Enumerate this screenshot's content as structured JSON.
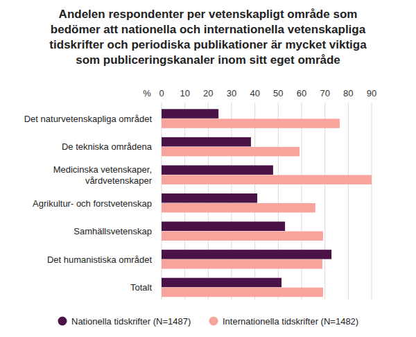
{
  "chart_data": {
    "type": "bar",
    "orientation": "horizontal",
    "title": "Andelen respondenter per vetenskapligt område som\nbedömer att nationella och internationella vetenskapliga\ntidskrifter och periodiska publikationer är mycket viktiga\nsom publiceringskanaler inom sitt eget område",
    "x_label": "%",
    "categories": [
      "Det naturvetenskapliga området",
      "De tekniska områdena",
      "Medicinska vetenskaper,\nvårdvetenskaper",
      "Agrikultur- och forstvetenskap",
      "Samhällsvetenskap",
      "Det humanistiska området",
      "Totalt"
    ],
    "series": [
      {
        "name": "Nationella tidskrifter (N=1487)",
        "color": "#4b1248",
        "values": [
          24.4,
          38.3,
          47.8,
          41,
          52.9,
          72.8,
          51.4
        ]
      },
      {
        "name": "Internationella tidskrifter (N=1482)",
        "color": "#f8a39c",
        "values": [
          76.3,
          59.1,
          90,
          65.9,
          69.2,
          68.9,
          69.2
        ]
      }
    ],
    "xlim": [
      0,
      90
    ],
    "xticks": [
      0,
      10,
      20,
      30,
      40,
      50,
      60,
      70,
      80,
      90
    ],
    "grid": true,
    "legend": "bottom"
  }
}
